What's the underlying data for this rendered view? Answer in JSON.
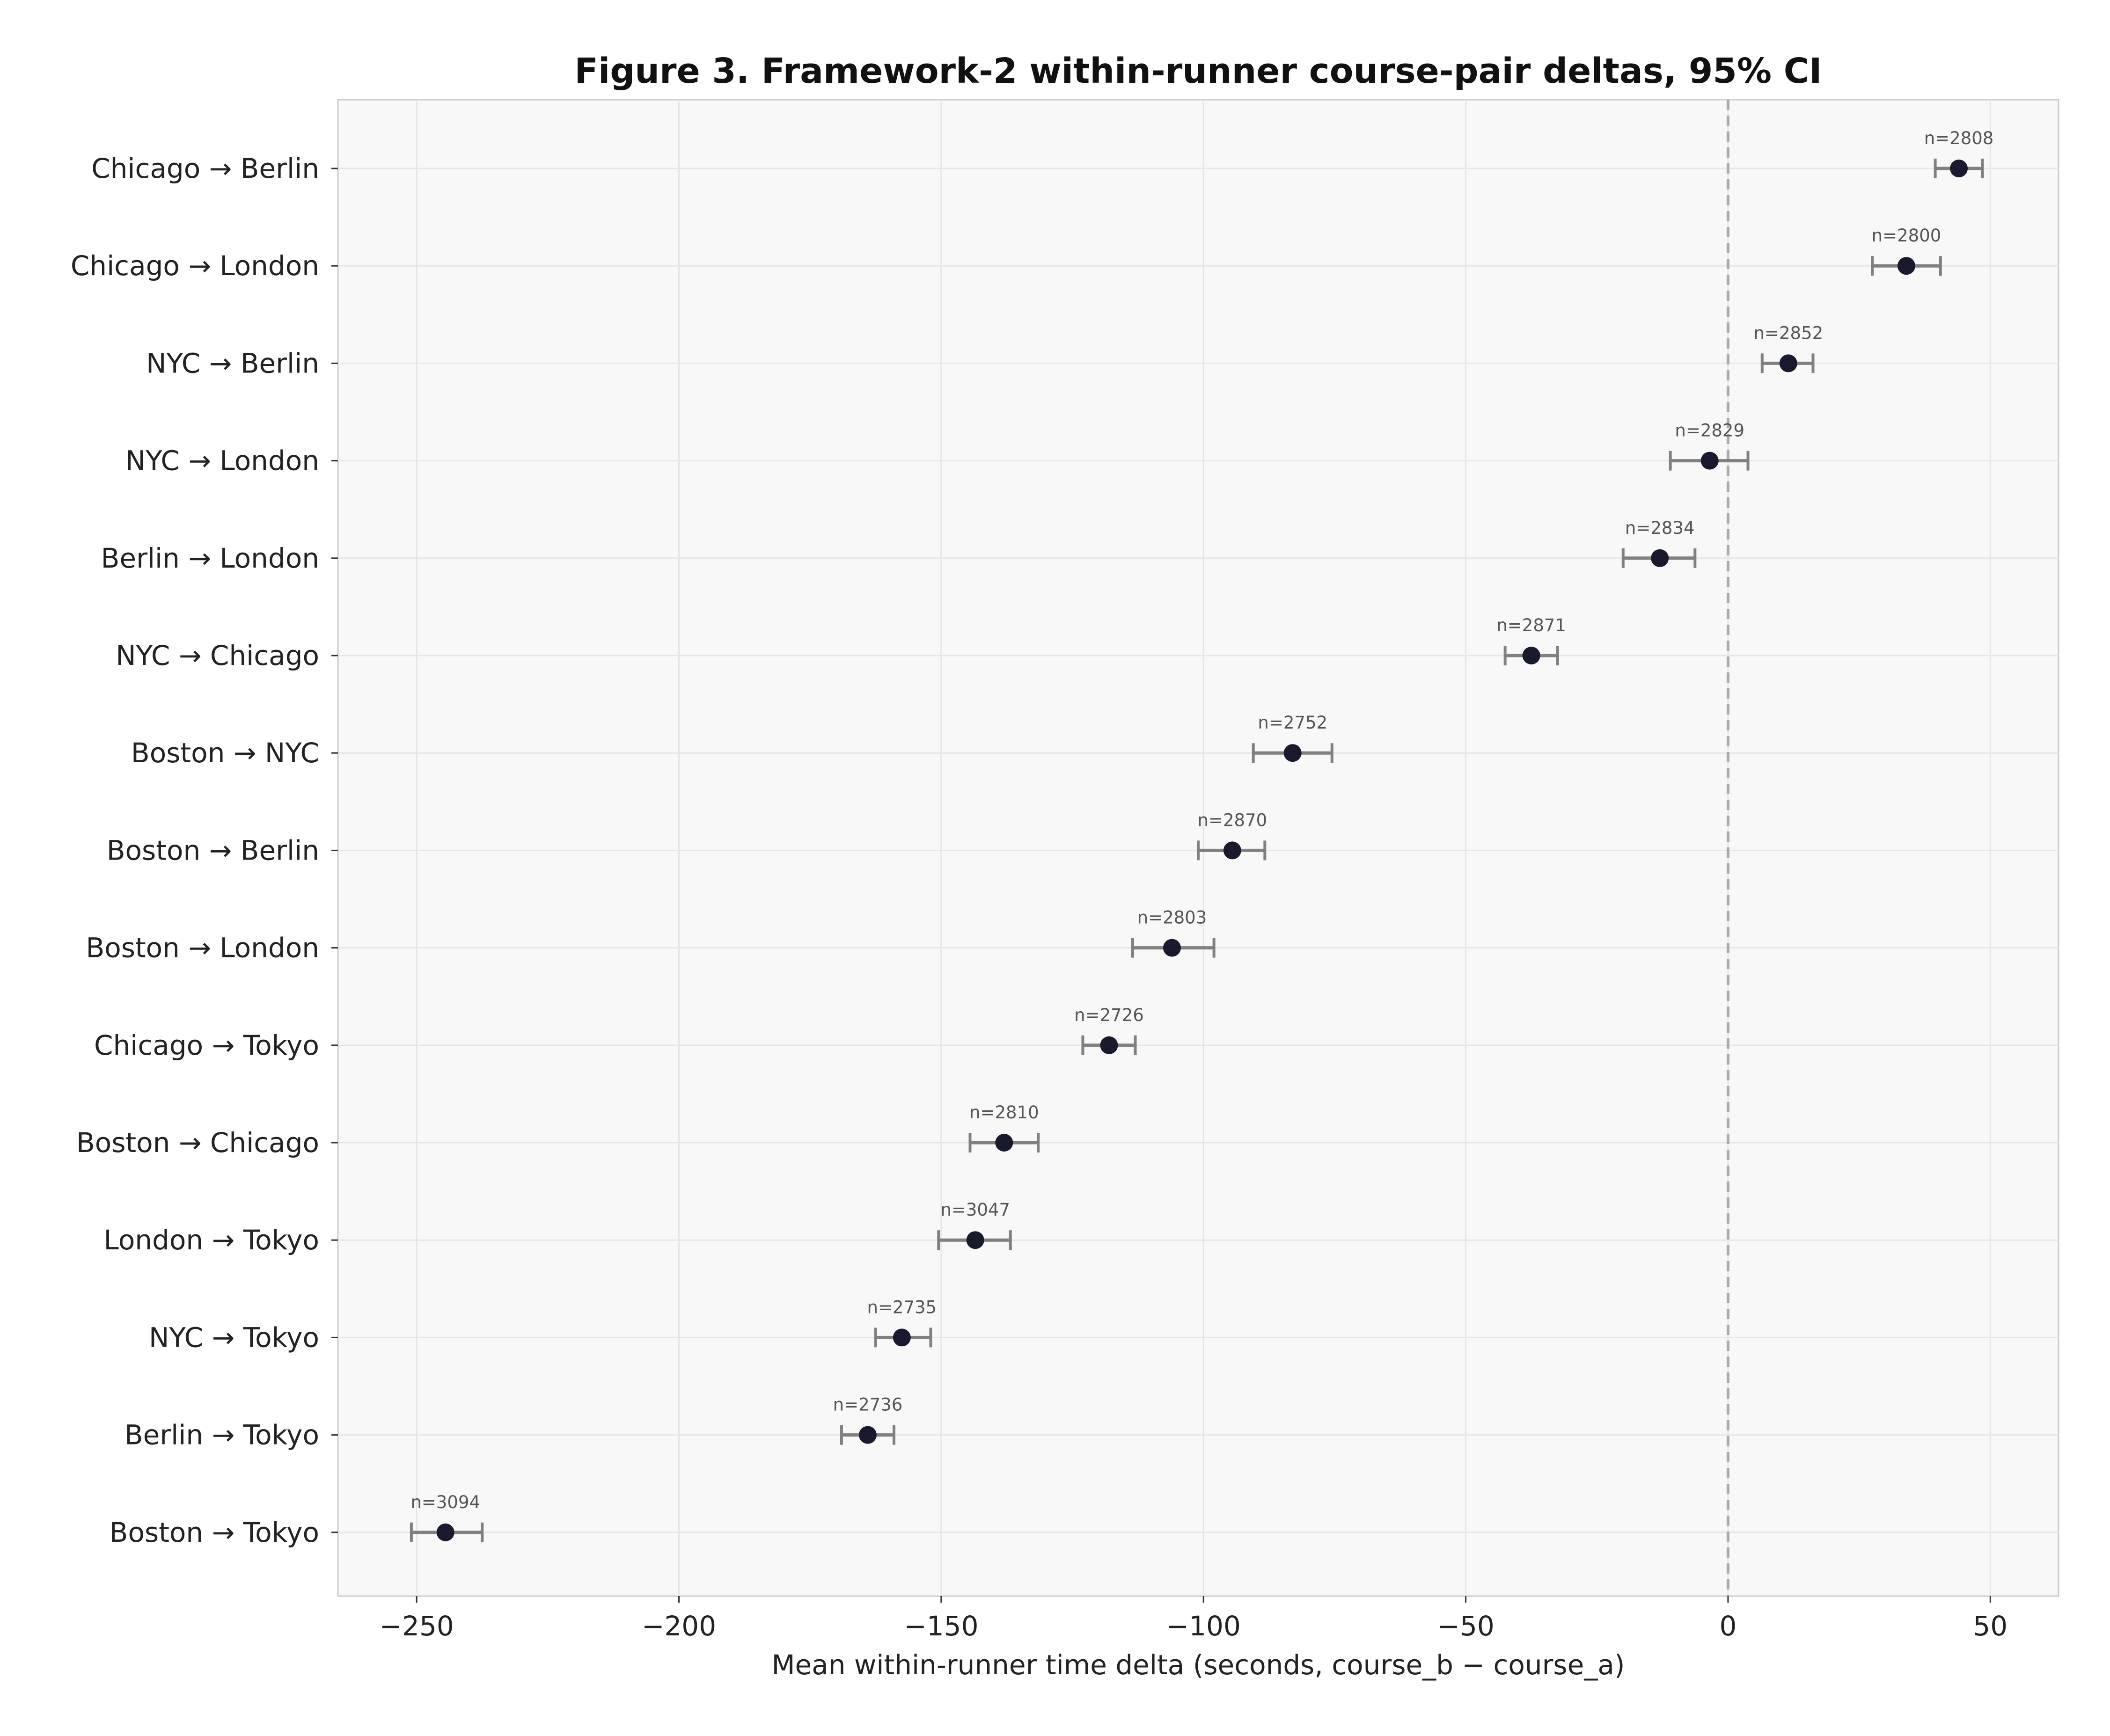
{
  "chart_data": {
    "type": "scatter",
    "title": "Figure 3. Framework-2 within-runner course-pair deltas, 95% CI",
    "xlabel": "Mean within-runner time delta (seconds, course_b − course_a)",
    "ylabel": "",
    "xlim": [
      -265,
      63
    ],
    "xticks": [
      -250,
      -200,
      -150,
      -100,
      -50,
      0,
      50
    ],
    "xtick_labels": [
      "−250",
      "−200",
      "−150",
      "−100",
      "−50",
      "0",
      "50"
    ],
    "reference_line": {
      "x": 0,
      "style": "dashed"
    },
    "grid": true,
    "colors": {
      "plot_background": "#f8f8f8",
      "point": "#1a1a2e",
      "error_bar": "#808080",
      "reference_line": "#aaaaaa",
      "grid": "#e6e6e6",
      "n_label": "#555555"
    },
    "points": [
      {
        "label": "Chicago → Berlin",
        "mean": 44,
        "ci_low": 39.5,
        "ci_high": 48.5,
        "n_label": "n=2808"
      },
      {
        "label": "Chicago → London",
        "mean": 34,
        "ci_low": 27.5,
        "ci_high": 40.5,
        "n_label": "n=2800"
      },
      {
        "label": "NYC → Berlin",
        "mean": 11.5,
        "ci_low": 6.5,
        "ci_high": 16.2,
        "n_label": "n=2852"
      },
      {
        "label": "NYC → London",
        "mean": -3.5,
        "ci_low": -11,
        "ci_high": 3.8,
        "n_label": "n=2829"
      },
      {
        "label": "Berlin → London",
        "mean": -13,
        "ci_low": -20,
        "ci_high": -6.3,
        "n_label": "n=2834"
      },
      {
        "label": "NYC → Chicago",
        "mean": -37.5,
        "ci_low": -42.5,
        "ci_high": -32.5,
        "n_label": "n=2871"
      },
      {
        "label": "Boston → NYC",
        "mean": -83,
        "ci_low": -90.5,
        "ci_high": -75.5,
        "n_label": "n=2752"
      },
      {
        "label": "Boston → Berlin",
        "mean": -94.5,
        "ci_low": -101,
        "ci_high": -88.3,
        "n_label": "n=2870"
      },
      {
        "label": "Boston → London",
        "mean": -106,
        "ci_low": -113.5,
        "ci_high": -98,
        "n_label": "n=2803"
      },
      {
        "label": "Chicago → Tokyo",
        "mean": -118,
        "ci_low": -123,
        "ci_high": -113,
        "n_label": "n=2726"
      },
      {
        "label": "Boston → Chicago",
        "mean": -138,
        "ci_low": -144.5,
        "ci_high": -131.5,
        "n_label": "n=2810"
      },
      {
        "label": "London → Tokyo",
        "mean": -143.5,
        "ci_low": -150.5,
        "ci_high": -136.8,
        "n_label": "n=3047"
      },
      {
        "label": "NYC → Tokyo",
        "mean": -157.5,
        "ci_low": -162.5,
        "ci_high": -152,
        "n_label": "n=2735"
      },
      {
        "label": "Berlin → Tokyo",
        "mean": -164,
        "ci_low": -169,
        "ci_high": -159,
        "n_label": "n=2736"
      },
      {
        "label": "Boston → Tokyo",
        "mean": -244.5,
        "ci_low": -251,
        "ci_high": -237.5,
        "n_label": "n=3094"
      }
    ]
  }
}
